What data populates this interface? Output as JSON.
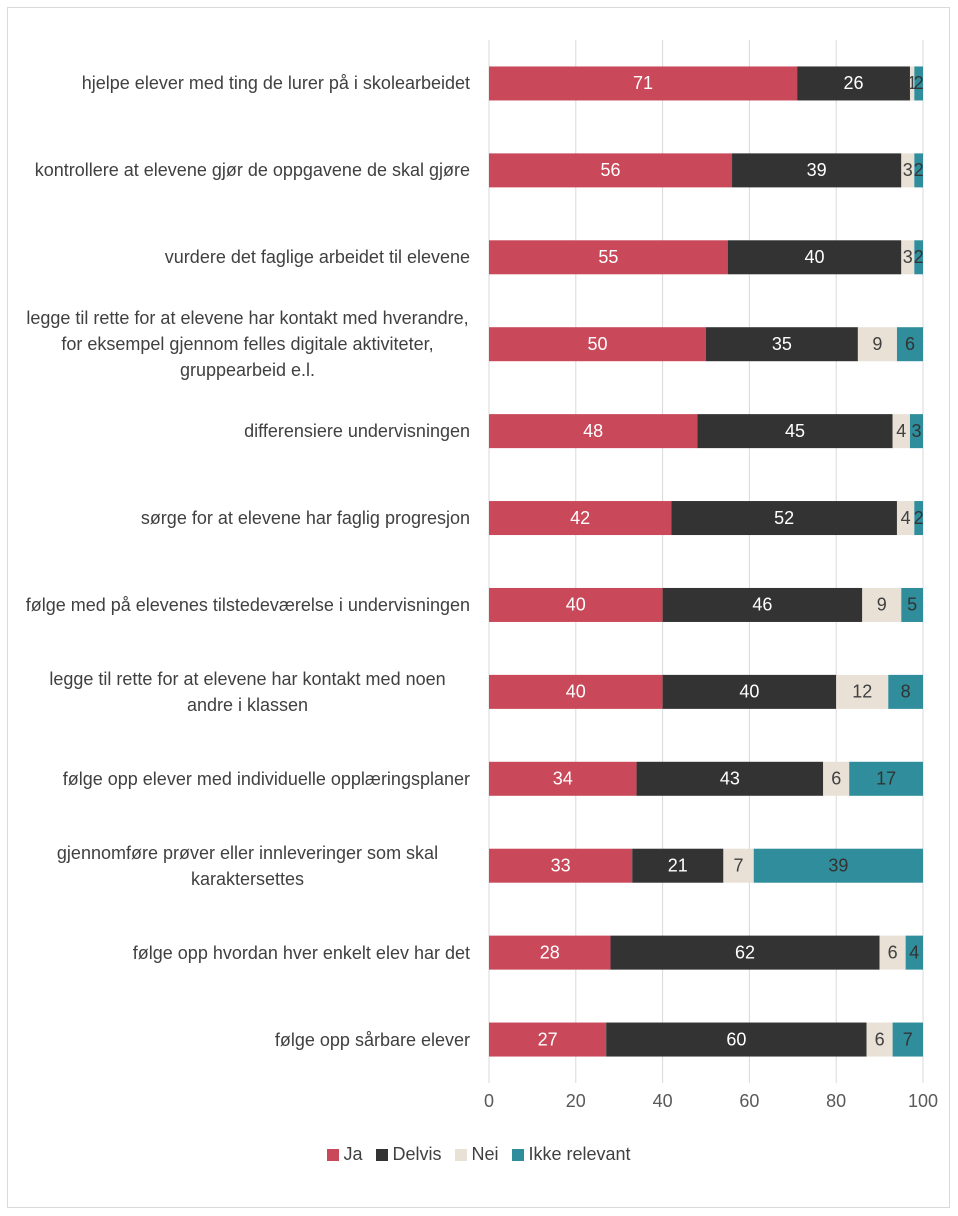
{
  "chart_data": {
    "type": "bar",
    "orientation": "horizontal",
    "stacked": true,
    "categories": [
      "hjelpe elever med ting de lurer på i skolearbeidet",
      "kontrollere at elevene gjør de oppgavene de skal gjøre",
      "vurdere det faglige arbeidet til elevene",
      "legge til rette for at elevene har kontakt med hverandre, for eksempel gjennom felles digitale aktiviteter, gruppearbeid e.l.",
      "differensiere undervisningen",
      "sørge for at elevene har faglig progresjon",
      "følge med på elevenes tilstedeværelse i undervisningen",
      "legge til rette for at elevene har kontakt med noen andre i klassen",
      "følge opp elever med individuelle opplæringsplaner",
      "gjennomføre prøver eller innleveringer som skal karaktersettes",
      "følge opp hvordan hver enkelt elev har det",
      "følge opp sårbare elever"
    ],
    "series": [
      {
        "name": "Ja",
        "color": "#c9495a",
        "label_color": "#ffffff",
        "values": [
          71,
          56,
          55,
          50,
          48,
          42,
          40,
          40,
          34,
          33,
          28,
          27
        ]
      },
      {
        "name": "Delvis",
        "color": "#333333",
        "label_color": "#ffffff",
        "values": [
          26,
          39,
          40,
          35,
          45,
          52,
          46,
          40,
          43,
          21,
          62,
          60
        ]
      },
      {
        "name": "Nei",
        "color": "#e9e1d6",
        "label_color": "#404040",
        "values": [
          1,
          3,
          3,
          9,
          4,
          4,
          9,
          12,
          6,
          7,
          6,
          6
        ]
      },
      {
        "name": "Ikke relevant",
        "color": "#2f8d9c",
        "label_color": "#333333",
        "values": [
          2,
          2,
          2,
          6,
          3,
          2,
          5,
          8,
          17,
          39,
          4,
          7
        ]
      }
    ],
    "xlim": [
      0,
      100
    ],
    "xticks": [
      0,
      20,
      40,
      60,
      80,
      100
    ],
    "grid": true,
    "legend": "bottom"
  }
}
